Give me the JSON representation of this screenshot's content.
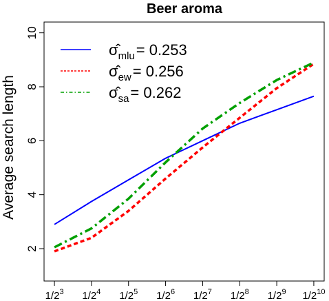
{
  "chart_data": {
    "type": "line",
    "title": "Beer aroma",
    "xlabel": "",
    "ylabel": "Average search length",
    "x_log2": [
      3,
      4,
      5,
      6,
      7,
      8,
      9,
      10
    ],
    "x_tick_labels": [
      {
        "base": "1/2",
        "exp": "3"
      },
      {
        "base": "1/2",
        "exp": "4"
      },
      {
        "base": "1/2",
        "exp": "5"
      },
      {
        "base": "1/2",
        "exp": "6"
      },
      {
        "base": "1/2",
        "exp": "7"
      },
      {
        "base": "1/2",
        "exp": "8"
      },
      {
        "base": "1/2",
        "exp": "9"
      },
      {
        "base": "1/2",
        "exp": "10"
      }
    ],
    "y_ticks": [
      2,
      4,
      6,
      8,
      10
    ],
    "ylim": [
      0.8,
      10.4
    ],
    "grid": false,
    "legend_position": "top-left",
    "series": [
      {
        "legend_symbol": "σ̂",
        "legend_subscript": "mlu",
        "legend_value": "= 0.253",
        "color": "#0000ff",
        "dash": "solid",
        "x_log2": [
          3,
          4,
          5,
          6,
          7,
          8,
          9,
          10
        ],
        "values": [
          2.9,
          3.75,
          4.55,
          5.35,
          6.0,
          6.65,
          7.15,
          7.65
        ]
      },
      {
        "legend_symbol": "σ̂",
        "legend_subscript": "ew",
        "legend_value": "= 0.256",
        "color": "#ff0000",
        "dash": "dashed",
        "x_log2": [
          3,
          4,
          5,
          6,
          7,
          8,
          9,
          10
        ],
        "values": [
          1.9,
          2.4,
          3.4,
          4.6,
          5.75,
          6.85,
          7.95,
          8.85
        ]
      },
      {
        "legend_symbol": "σ̂",
        "legend_subscript": "sa",
        "legend_value": "= 0.262",
        "color": "#00a000",
        "dash": "dotdash",
        "x_log2": [
          3,
          4,
          5,
          6,
          7,
          8,
          9,
          10
        ],
        "values": [
          2.05,
          2.75,
          3.85,
          5.2,
          6.45,
          7.4,
          8.25,
          8.9
        ]
      }
    ]
  }
}
